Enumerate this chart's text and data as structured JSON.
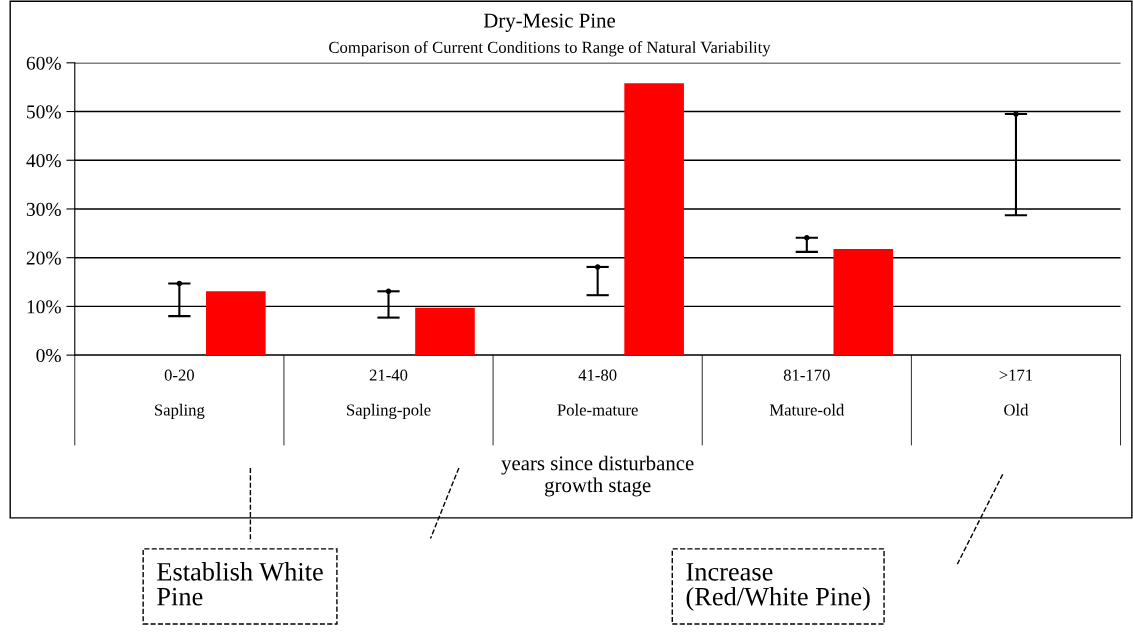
{
  "chart_data": {
    "type": "bar",
    "title": "Dry-Mesic Pine",
    "subtitle": "Comparison of Current Conditions to Range of Natural Variability",
    "xlabel": "years since disturbance\ngrowth stage",
    "categories": [
      "0-20\n\nSapling",
      "21-40\n\nSapling-pole",
      "41-80\n\nPole-mature",
      "81-170\n\nMature-old",
      ">171\n\nOld"
    ],
    "series": [
      {
        "type": "scatter",
        "color": "#000000",
        "values": [
          14.7,
          13.1,
          18.1,
          24.1,
          49.5
        ],
        "errors": [
          [
            8.0,
            14.7
          ],
          [
            7.7,
            13.1
          ],
          [
            12.3,
            18.1
          ],
          [
            21.2,
            24.1
          ],
          [
            28.7,
            49.5
          ]
        ]
      },
      {
        "color": "#ff0000",
        "values": [
          13.1,
          9.7,
          55.8,
          21.8,
          null
        ]
      }
    ],
    "ylim": [
      0,
      60
    ],
    "yticks": [
      {
        "value": 0,
        "label": "0%"
      },
      {
        "value": 10,
        "label": "10%"
      },
      {
        "value": 20,
        "label": "20%"
      },
      {
        "value": 30,
        "label": "30%"
      },
      {
        "value": 40,
        "label": "40%"
      },
      {
        "value": 50,
        "label": "50%"
      },
      {
        "value": 60,
        "label": "60%"
      }
    ],
    "grid": "y",
    "annotations": [
      "Establish White\nPine",
      "Increase\n(Red/White Pine)"
    ]
  }
}
